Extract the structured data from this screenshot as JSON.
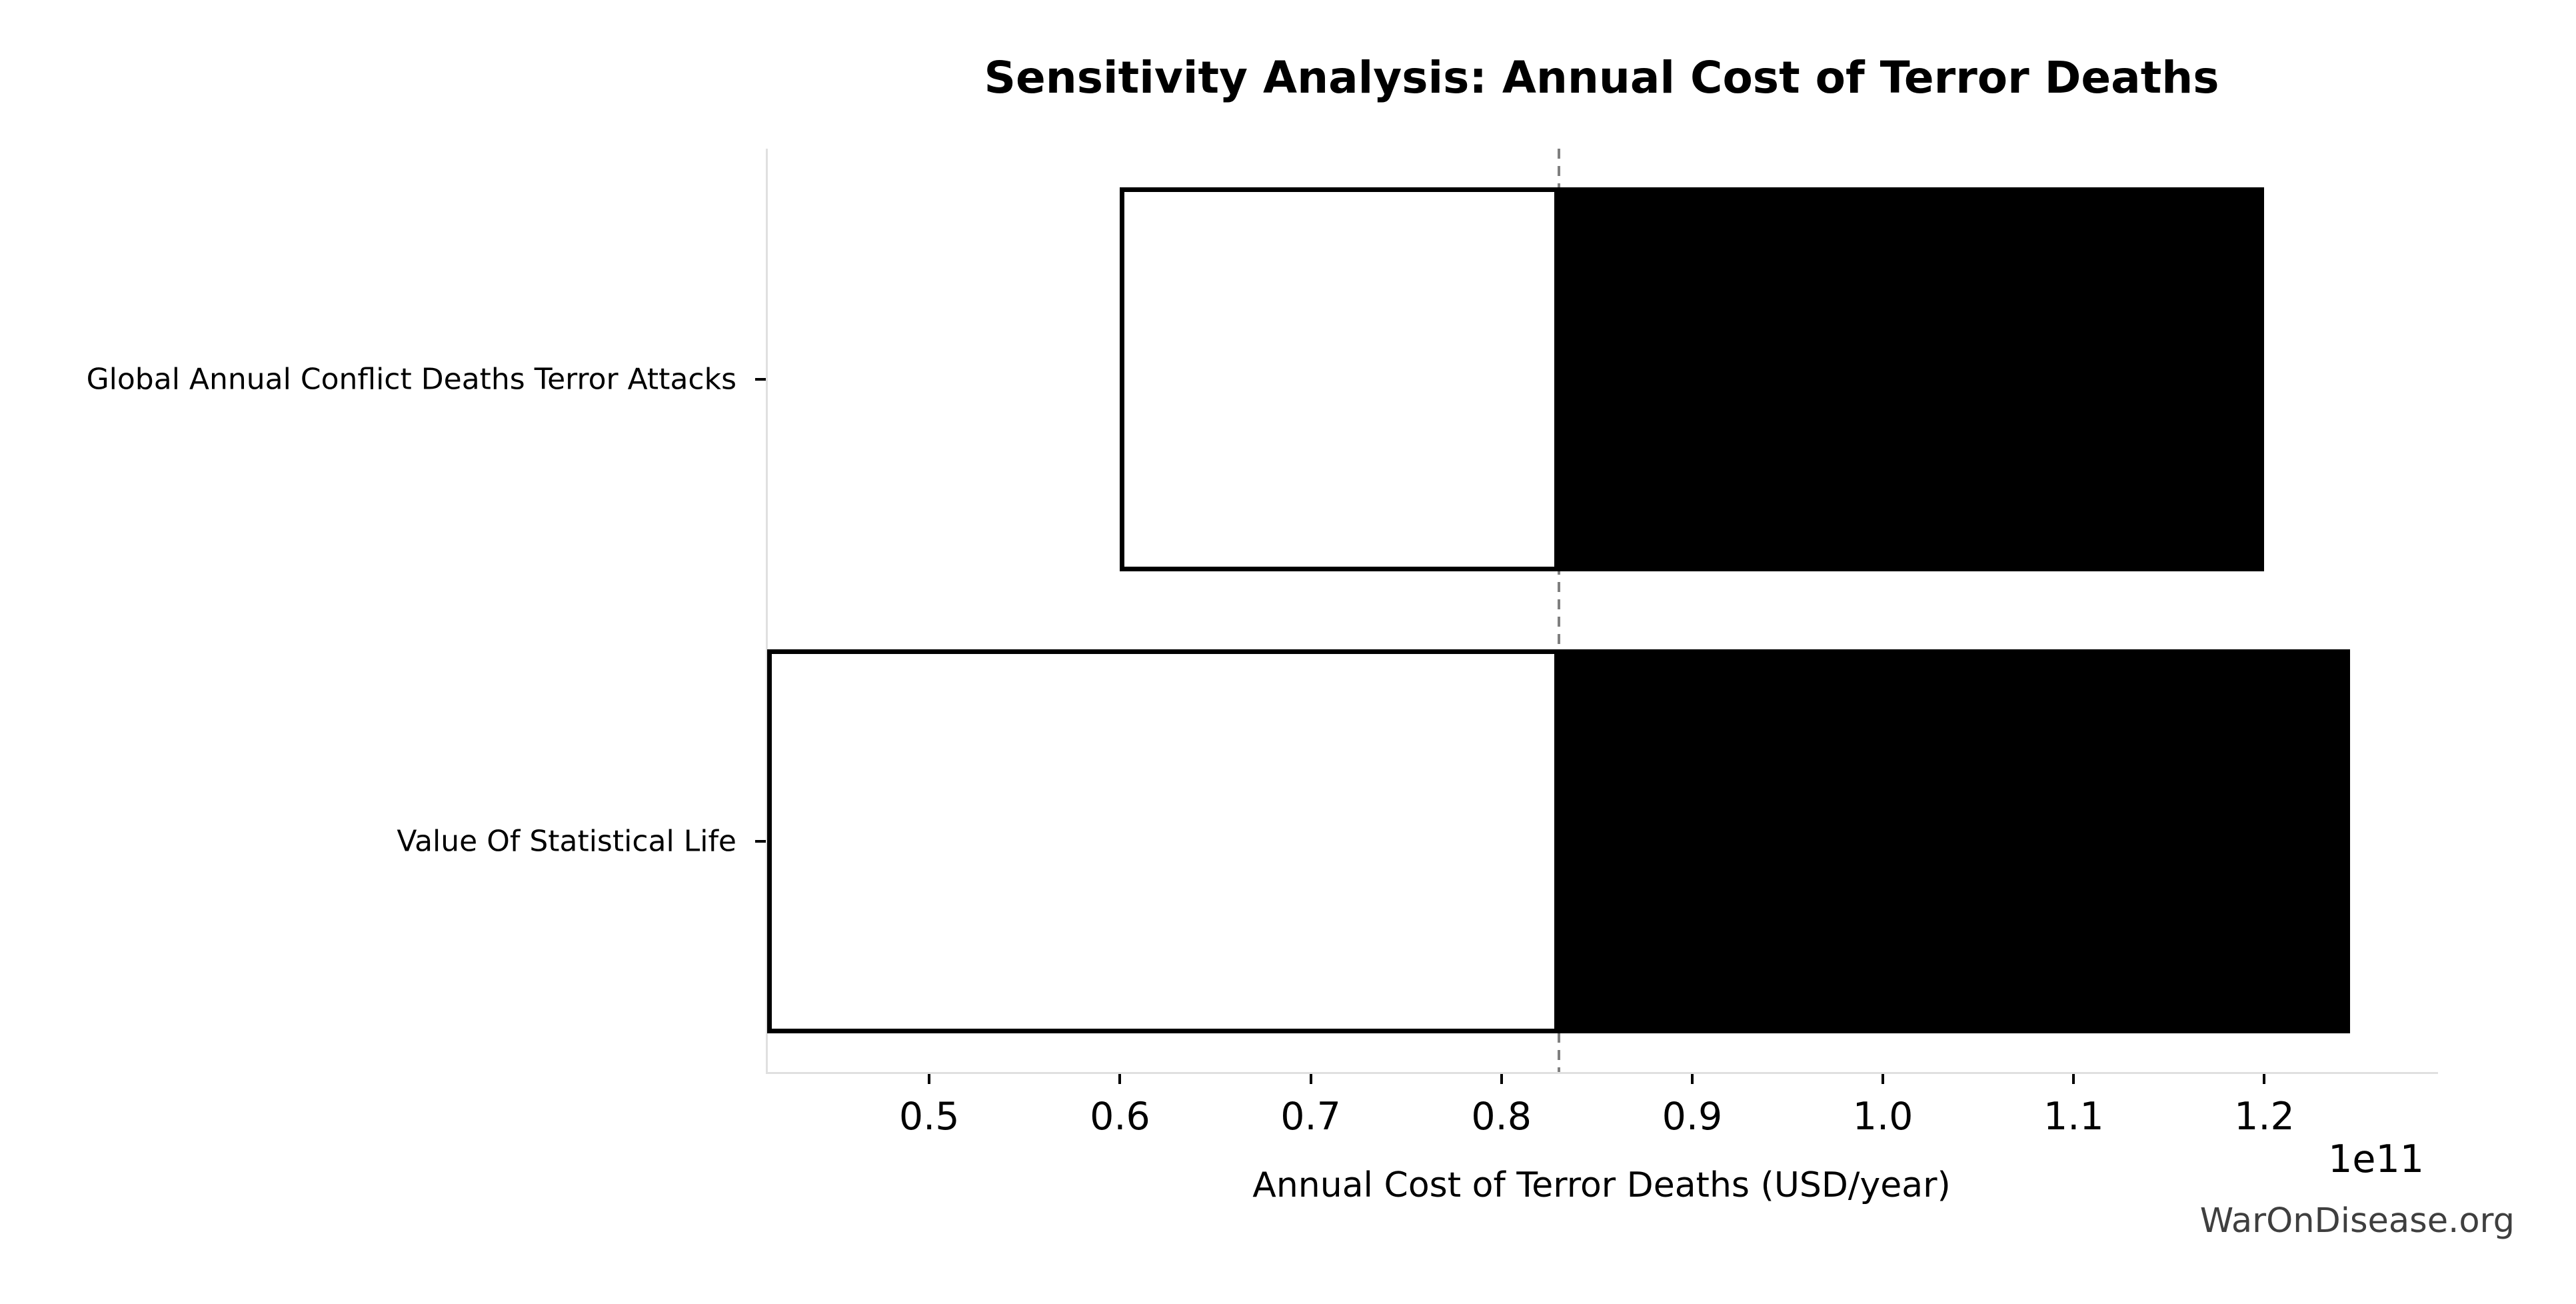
{
  "chart_data": {
    "type": "bar",
    "orientation": "horizontal",
    "subtype": "tornado-sensitivity",
    "title": "Sensitivity Analysis: Annual Cost of Terror Deaths",
    "xlabel": "Annual Cost of Terror Deaths (USD/year)",
    "offset_label": "1e11",
    "base_value": 83000000000.0,
    "xlim": [
      41500000000.0,
      129000000000.0
    ],
    "x_ticks": [
      50000000000.0,
      60000000000.0,
      70000000000.0,
      80000000000.0,
      90000000000.0,
      100000000000.0,
      110000000000.0,
      120000000000.0
    ],
    "x_tick_labels": [
      "0.5",
      "0.6",
      "0.7",
      "0.8",
      "0.9",
      "1.0",
      "1.1",
      "1.2"
    ],
    "grid": false,
    "legend": "none",
    "rows": [
      {
        "label": "Global Annual Conflict Deaths Terror Attacks",
        "low": 60000000000.0,
        "high": 120000000000.0
      },
      {
        "label": "Value Of Statistical Life",
        "low": 41500000000.0,
        "high": 124500000000.0
      }
    ],
    "colors": {
      "bar_low_fill": "#ffffff",
      "bar_high_fill": "#000000",
      "bar_edge": "#000000",
      "baseline_dash": "#7f7f7f",
      "spine": "#e0e0e0",
      "text": "#000000",
      "watermark": "#3f3f3f"
    }
  },
  "footer": {
    "watermark": "WarOnDisease.org"
  }
}
